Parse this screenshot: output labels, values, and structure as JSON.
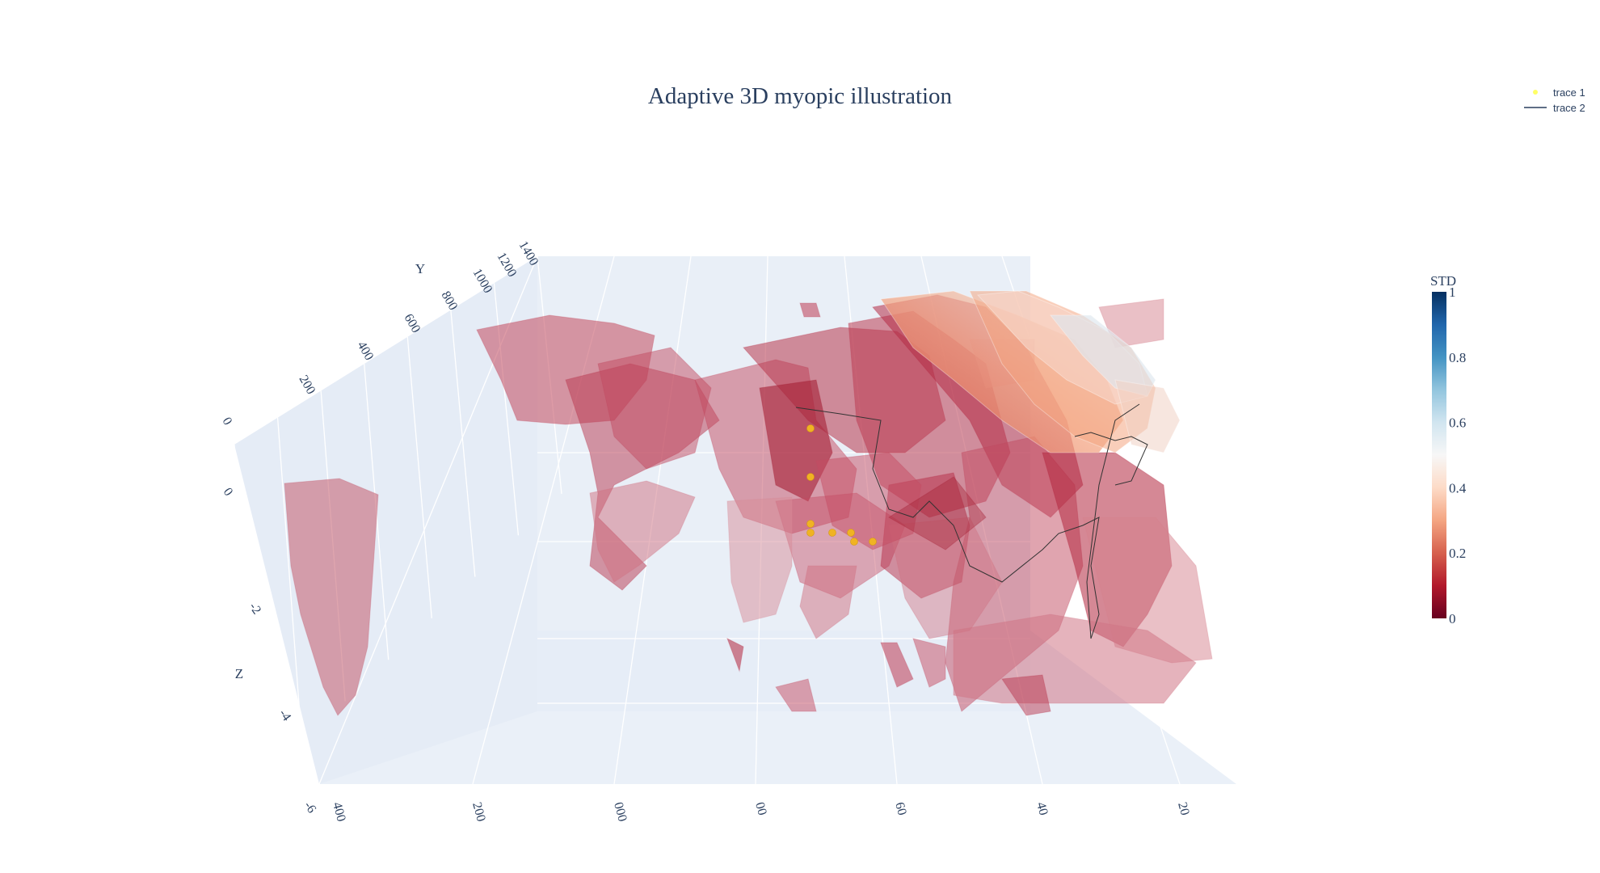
{
  "chart_data": {
    "type": "3d-isosurface-scatter",
    "title": "Adaptive 3D myopic illustration",
    "axes": {
      "x": {
        "title": "",
        "ticks": [
          "400",
          "200",
          "000",
          "00",
          "60",
          "40",
          "20"
        ]
      },
      "y": {
        "title": "Y",
        "ticks": [
          "0",
          "200",
          "400",
          "600",
          "800",
          "1000",
          "1200",
          "1400"
        ]
      },
      "z": {
        "title": "Z",
        "ticks": [
          "0",
          "-2",
          "-4",
          "-6"
        ]
      }
    },
    "colorbar": {
      "title": "STD",
      "ticks": [
        "0",
        "0.2",
        "0.4",
        "0.6",
        "0.8",
        "1"
      ],
      "range": [
        0,
        1
      ],
      "colorscale": "RdBu"
    },
    "legend": {
      "position": "top-right",
      "entries": [
        {
          "name": "trace 1",
          "symbol": "marker",
          "color": "#ffff66"
        },
        {
          "name": "trace 2",
          "symbol": "line",
          "color": "#2a3f5f"
        }
      ]
    },
    "series": [
      {
        "name": "trace 1",
        "mode": "markers",
        "color": "#f0b323",
        "points": [
          [
            0.57,
            0.57,
            0.37
          ],
          [
            0.57,
            0.62,
            0.3
          ],
          [
            0.57,
            0.66,
            0.28
          ],
          [
            0.58,
            0.67,
            0.27
          ],
          [
            0.6,
            0.67,
            0.27
          ],
          [
            0.62,
            0.67,
            0.27
          ],
          [
            0.62,
            0.68,
            0.26
          ],
          [
            0.64,
            0.69,
            0.26
          ]
        ]
      },
      {
        "name": "trace 2",
        "mode": "lines",
        "color": "#333333"
      }
    ]
  }
}
